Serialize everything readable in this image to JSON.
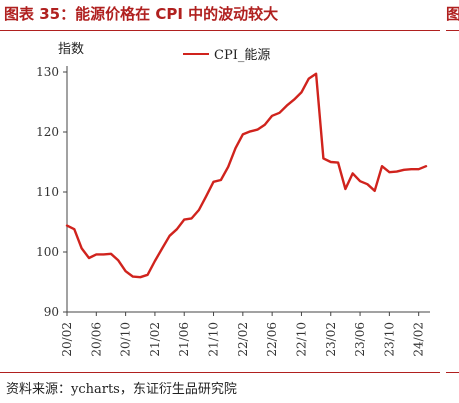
{
  "figure": {
    "title": "图表 35：能源价格在 CPI 中的波动较大",
    "right_fragment": "图",
    "source": "资料来源：ycharts，东证衍生品研究院"
  },
  "chart_data": {
    "type": "line",
    "title": "",
    "ylabel": "指数",
    "xlabel": "",
    "ylim": [
      90,
      130
    ],
    "yticks": [
      90,
      100,
      110,
      120,
      130
    ],
    "xlim": [
      "2020-02",
      "2024-03"
    ],
    "xticks": [
      "20/02",
      "20/06",
      "20/10",
      "21/02",
      "21/06",
      "21/10",
      "22/02",
      "22/06",
      "22/10",
      "23/02",
      "23/06",
      "23/10",
      "24/02"
    ],
    "grid": false,
    "legend_position": "top-center",
    "series": [
      {
        "name": "CPI_能源",
        "color": "#d0231d",
        "points": [
          [
            "2020-02",
            104.4
          ],
          [
            "2020-03",
            103.8
          ],
          [
            "2020-04",
            100.6
          ],
          [
            "2020-05",
            99.0
          ],
          [
            "2020-06",
            99.6
          ],
          [
            "2020-07",
            99.6
          ],
          [
            "2020-08",
            99.7
          ],
          [
            "2020-09",
            98.6
          ],
          [
            "2020-10",
            96.8
          ],
          [
            "2020-11",
            95.9
          ],
          [
            "2020-12",
            95.8
          ],
          [
            "2021-01",
            96.2
          ],
          [
            "2021-02",
            98.5
          ],
          [
            "2021-03",
            100.6
          ],
          [
            "2021-04",
            102.7
          ],
          [
            "2021-05",
            103.8
          ],
          [
            "2021-06",
            105.4
          ],
          [
            "2021-07",
            105.6
          ],
          [
            "2021-08",
            107.0
          ],
          [
            "2021-09",
            109.3
          ],
          [
            "2021-10",
            111.7
          ],
          [
            "2021-11",
            112.0
          ],
          [
            "2021-12",
            114.2
          ],
          [
            "2022-01",
            117.3
          ],
          [
            "2022-02",
            119.6
          ],
          [
            "2022-03",
            120.1
          ],
          [
            "2022-04",
            120.4
          ],
          [
            "2022-05",
            121.2
          ],
          [
            "2022-06",
            122.7
          ],
          [
            "2022-07",
            123.2
          ],
          [
            "2022-08",
            124.4
          ],
          [
            "2022-09",
            125.4
          ],
          [
            "2022-10",
            126.6
          ],
          [
            "2022-11",
            128.9
          ],
          [
            "2022-12",
            129.7
          ],
          [
            "2023-01",
            115.6
          ],
          [
            "2023-02",
            115.0
          ],
          [
            "2023-03",
            114.9
          ],
          [
            "2023-04",
            110.5
          ],
          [
            "2023-05",
            113.1
          ],
          [
            "2023-06",
            111.8
          ],
          [
            "2023-07",
            111.3
          ],
          [
            "2023-08",
            110.2
          ],
          [
            "2023-09",
            114.3
          ],
          [
            "2023-10",
            113.3
          ],
          [
            "2023-11",
            113.4
          ],
          [
            "2023-12",
            113.7
          ],
          [
            "2024-01",
            113.8
          ],
          [
            "2024-02",
            113.8
          ],
          [
            "2024-03",
            114.3
          ]
        ]
      }
    ]
  }
}
